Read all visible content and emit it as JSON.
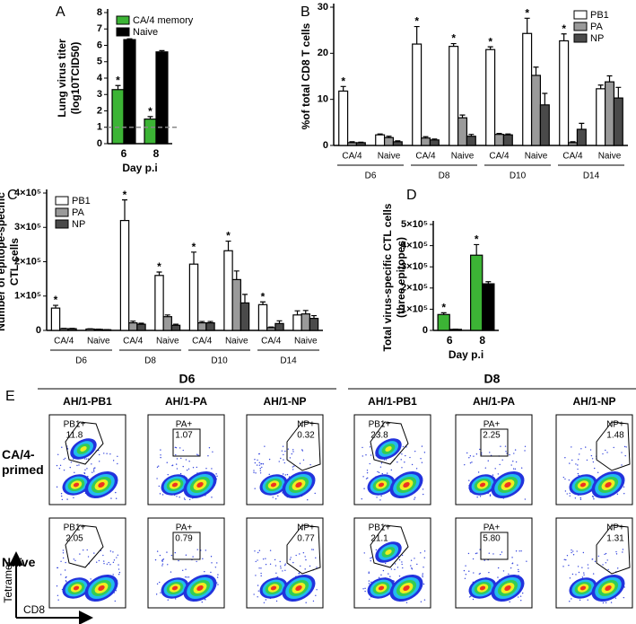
{
  "chart_data": [
    {
      "type": "bar",
      "panel_label": "A",
      "ylabel": [
        "Lung virus titer",
        "(log10TCID50)"
      ],
      "xlabel": "Day p.i",
      "categories": [
        "6",
        "8"
      ],
      "series": [
        {
          "name": "CA/4 memory",
          "color": "#3cb435",
          "values": [
            3.3,
            1.5
          ],
          "errors": [
            0.25,
            0.15
          ],
          "significance": [
            "*",
            "*"
          ]
        },
        {
          "name": "Naive",
          "color": "#000000",
          "values": [
            6.35,
            5.6
          ],
          "errors": [
            0.05,
            0.08
          ]
        }
      ],
      "ylim": [
        0,
        8
      ],
      "yticks": [
        0,
        1,
        2,
        3,
        4,
        5,
        6,
        7,
        8
      ],
      "reference_line": 1,
      "legend": "upper left"
    },
    {
      "type": "bar",
      "panel_label": "B",
      "ylabel": [
        "%of total CD8 T cells"
      ],
      "categories": [
        "CA/4",
        "Naive",
        "CA/4",
        "Naive",
        "CA/4",
        "Naive",
        "CA/4",
        "Naive"
      ],
      "groups": [
        "D6",
        "D8",
        "D10",
        "D14"
      ],
      "series": [
        {
          "name": "PB1",
          "color": "#ffffff",
          "values": [
            11.8,
            2.3,
            22,
            21.5,
            20.8,
            24.3,
            22.7,
            12.3
          ],
          "errors": [
            1,
            0.2,
            3.8,
            0.6,
            0.6,
            3.3,
            1.5,
            0.8
          ],
          "significance": [
            "*",
            null,
            "*",
            "*",
            "*",
            "*",
            "*",
            null
          ]
        },
        {
          "name": "PA",
          "color": "#9a9a9a",
          "values": [
            0.6,
            1.7,
            1.6,
            6,
            2.4,
            15.2,
            0.6,
            13.8
          ],
          "errors": [
            0.2,
            0.3,
            0.3,
            0.6,
            0.2,
            1.8,
            0.2,
            1.3
          ]
        },
        {
          "name": "NP",
          "color": "#4a4a4a",
          "values": [
            0.6,
            0.8,
            1.2,
            2,
            2.3,
            8.8,
            3.5,
            10.3
          ],
          "errors": [
            0.1,
            0.2,
            0.2,
            0.4,
            0.2,
            2.5,
            1.3,
            2.3
          ]
        }
      ],
      "ylim": [
        0,
        30
      ],
      "yticks": [
        0,
        10,
        20,
        30
      ],
      "legend": "upper right"
    },
    {
      "type": "bar",
      "panel_label": "C",
      "ylabel": [
        "Number of epitope-specific",
        "CTL cells"
      ],
      "categories": [
        "CA/4",
        "Naive",
        "CA/4",
        "Naive",
        "CA/4",
        "Naive",
        "CA/4",
        "Naive"
      ],
      "groups": [
        "D6",
        "D8",
        "D10",
        "D14"
      ],
      "series": [
        {
          "name": "PB1",
          "color": "#ffffff",
          "values": [
            65000,
            4000,
            320000,
            160000,
            193000,
            232000,
            75000,
            45000
          ],
          "errors": [
            8000,
            500,
            60000,
            10000,
            35000,
            28000,
            8000,
            12000
          ],
          "significance": [
            "*",
            null,
            "*",
            "*",
            "*",
            "*",
            "*",
            null
          ]
        },
        {
          "name": "PA",
          "color": "#9a9a9a",
          "values": [
            5000,
            3000,
            22000,
            40000,
            22000,
            148000,
            8000,
            48000
          ],
          "errors": [
            1000,
            500,
            5000,
            5000,
            4000,
            25000,
            2000,
            10000
          ]
        },
        {
          "name": "NP",
          "color": "#4a4a4a",
          "values": [
            5000,
            2000,
            18000,
            15000,
            22000,
            80000,
            20000,
            35000
          ],
          "errors": [
            1000,
            500,
            3000,
            3000,
            4000,
            25000,
            8000,
            8000
          ]
        }
      ],
      "ylim": [
        0,
        400000
      ],
      "yticks": [
        0,
        {
          "value": 100000,
          "label": "1×10⁵"
        },
        {
          "value": 200000,
          "label": "2×10⁵"
        },
        {
          "value": 300000,
          "label": "3×10⁵"
        },
        {
          "value": 400000,
          "label": "4×10⁵"
        }
      ],
      "legend": "upper left"
    },
    {
      "type": "bar",
      "panel_label": "D",
      "ylabel": [
        "Total virus-specific CTL cells",
        "(three epitopes)"
      ],
      "xlabel": "Day p.i",
      "categories": [
        "6",
        "8"
      ],
      "series": [
        {
          "color": "#3cb435",
          "values": [
            75000,
            355000
          ],
          "errors": [
            8000,
            50000
          ],
          "significance": [
            "*",
            "*"
          ]
        },
        {
          "color": "#000000",
          "values": [
            5000,
            220000
          ],
          "errors": [
            1000,
            10000
          ]
        }
      ],
      "ylim": [
        0,
        500000
      ],
      "yticks": [
        0,
        {
          "value": 100000,
          "label": "1×10⁵"
        },
        {
          "value": 200000,
          "label": "2×10⁵"
        },
        {
          "value": 300000,
          "label": "3×10⁵"
        },
        {
          "value": 400000,
          "label": "4×10⁵"
        },
        {
          "value": 500000,
          "label": "5×10⁵"
        }
      ]
    }
  ],
  "panel_e": {
    "label": "E",
    "days": [
      "D6",
      "D8"
    ],
    "columns": [
      "AH/1-PB1",
      "AH/1-PA",
      "AH/1-NP"
    ],
    "rows": [
      "CA/4-primed",
      "Naïve"
    ],
    "y_axis": "Tetramer",
    "x_axis": "CD8",
    "gates": [
      [
        {
          "name": "PB1+",
          "value": "11.8"
        },
        {
          "name": "PA+",
          "value": "1.07"
        },
        {
          "name": "NP+",
          "value": "0.32"
        },
        {
          "name": "PB1+",
          "value": "23.8"
        },
        {
          "name": "PA+",
          "value": "2.25"
        },
        {
          "name": "NP+",
          "value": "1.48"
        }
      ],
      [
        {
          "name": "PB1+",
          "value": "2.05"
        },
        {
          "name": "PA+",
          "value": "0.79"
        },
        {
          "name": "NP+",
          "value": "0.77"
        },
        {
          "name": "PB1+",
          "value": "21.1"
        },
        {
          "name": "PA+",
          "value": "5.80"
        },
        {
          "name": "NP+",
          "value": "1.31"
        }
      ]
    ]
  }
}
